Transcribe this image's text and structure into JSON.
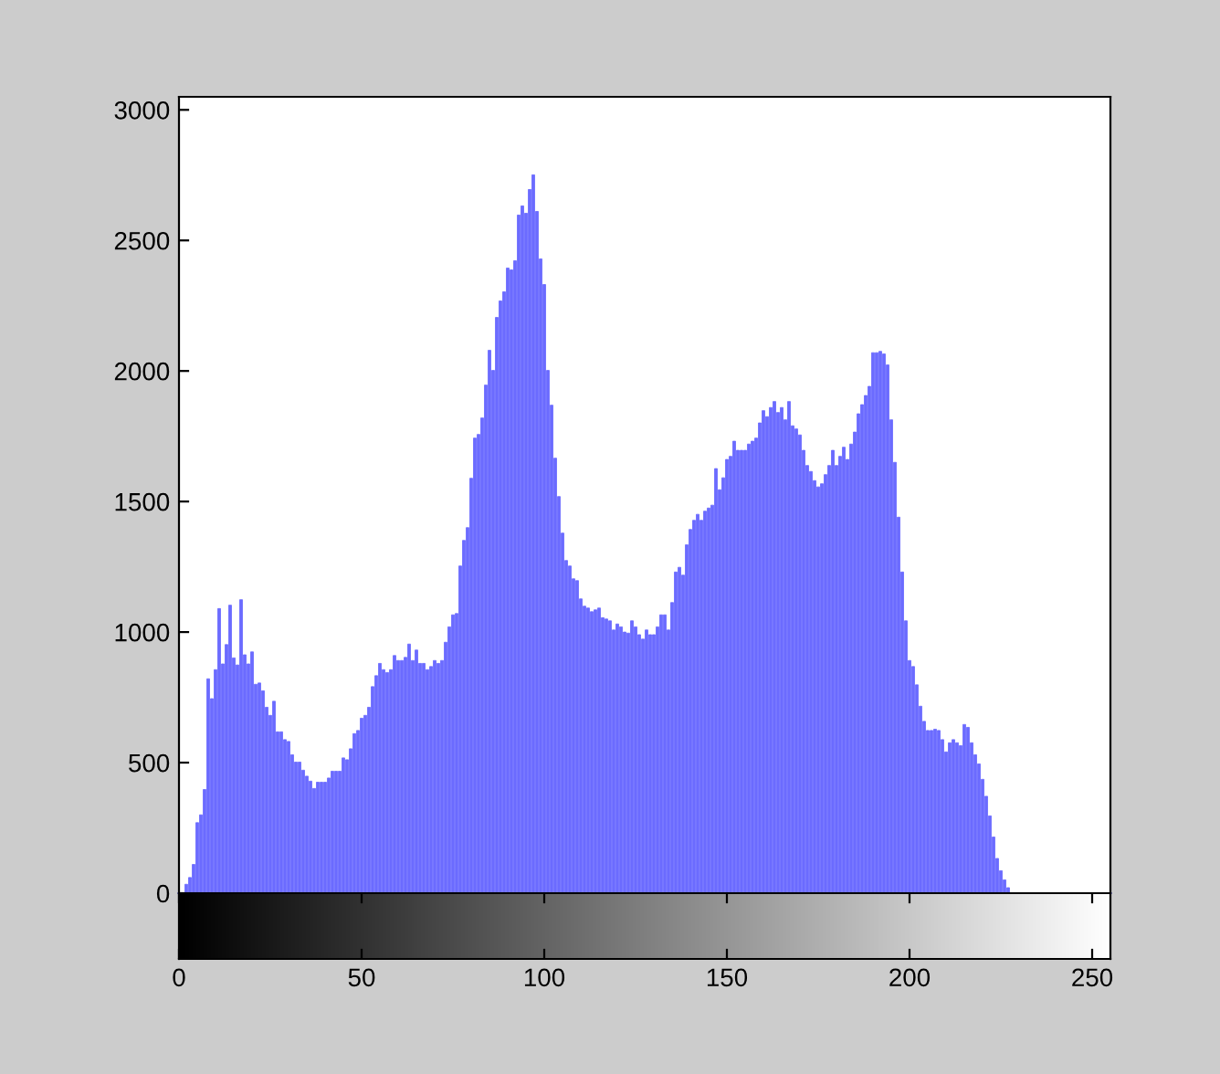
{
  "chart_data": {
    "type": "bar",
    "color": "#6b6bff",
    "x": [
      0,
      1,
      2,
      3,
      4,
      5,
      6,
      7,
      8,
      9,
      10,
      11,
      12,
      13,
      14,
      15,
      16,
      17,
      18,
      19,
      20,
      21,
      22,
      23,
      24,
      25,
      26,
      27,
      28,
      29,
      30,
      31,
      32,
      33,
      34,
      35,
      36,
      37,
      38,
      39,
      40,
      41,
      42,
      43,
      44,
      45,
      46,
      47,
      48,
      49,
      50,
      51,
      52,
      53,
      54,
      55,
      56,
      57,
      58,
      59,
      60,
      61,
      62,
      63,
      64,
      65,
      66,
      67,
      68,
      69,
      70,
      71,
      72,
      73,
      74,
      75,
      76,
      77,
      78,
      79,
      80,
      81,
      82,
      83,
      84,
      85,
      86,
      87,
      88,
      89,
      90,
      91,
      92,
      93,
      94,
      95,
      96,
      97,
      98,
      99,
      100,
      101,
      102,
      103,
      104,
      105,
      106,
      107,
      108,
      109,
      110,
      111,
      112,
      113,
      114,
      115,
      116,
      117,
      118,
      119,
      120,
      121,
      122,
      123,
      124,
      125,
      126,
      127,
      128,
      129,
      130,
      131,
      132,
      133,
      134,
      135,
      136,
      137,
      138,
      139,
      140,
      141,
      142,
      143,
      144,
      145,
      146,
      147,
      148,
      149,
      150,
      151,
      152,
      153,
      154,
      155,
      156,
      157,
      158,
      159,
      160,
      161,
      162,
      163,
      164,
      165,
      166,
      167,
      168,
      169,
      170,
      171,
      172,
      173,
      174,
      175,
      176,
      177,
      178,
      179,
      180,
      181,
      182,
      183,
      184,
      185,
      186,
      187,
      188,
      189,
      190,
      191,
      192,
      193,
      194,
      195,
      196,
      197,
      198,
      199,
      200,
      201,
      202,
      203,
      204,
      205,
      206,
      207,
      208,
      209,
      210,
      211,
      212,
      213,
      214,
      215,
      216,
      217,
      218,
      219,
      220,
      221,
      222,
      223,
      224,
      225,
      226,
      227,
      228,
      229,
      230,
      231,
      232,
      233,
      234,
      235,
      236,
      237,
      238,
      239,
      240,
      241,
      242,
      243,
      244,
      245,
      246,
      247,
      248,
      249,
      250,
      251,
      252,
      253,
      254,
      255
    ],
    "values": [
      0,
      0,
      34,
      60,
      110,
      270,
      300,
      397,
      821,
      745,
      856,
      1090,
      878,
      952,
      1103,
      901,
      874,
      1124,
      913,
      878,
      924,
      800,
      805,
      775,
      712,
      681,
      735,
      618,
      618,
      588,
      581,
      530,
      502,
      502,
      471,
      448,
      429,
      401,
      425,
      425,
      425,
      441,
      467,
      467,
      467,
      518,
      511,
      553,
      611,
      623,
      670,
      681,
      712,
      791,
      833,
      880,
      856,
      845,
      856,
      910,
      891,
      891,
      903,
      954,
      891,
      931,
      880,
      880,
      856,
      868,
      891,
      880,
      891,
      961,
      1020,
      1066,
      1071,
      1253,
      1351,
      1400,
      1589,
      1743,
      1757,
      1820,
      1946,
      2079,
      2002,
      2205,
      2268,
      2303,
      2394,
      2387,
      2422,
      2597,
      2632,
      2604,
      2695,
      2751,
      2611,
      2429,
      2331,
      2002,
      1869,
      1666,
      1519,
      1379,
      1274,
      1253,
      1204,
      1197,
      1127,
      1099,
      1092,
      1078,
      1085,
      1092,
      1055,
      1050,
      1043,
      1008,
      1031,
      1020,
      1000,
      996,
      1043,
      1020,
      990,
      973,
      1008,
      990,
      990,
      1020,
      1066,
      1066,
      1008,
      1113,
      1230,
      1248,
      1218,
      1334,
      1393,
      1428,
      1451,
      1428,
      1463,
      1475,
      1486,
      1626,
      1545,
      1591,
      1661,
      1673,
      1731,
      1696,
      1696,
      1696,
      1720,
      1731,
      1743,
      1801,
      1848,
      1825,
      1860,
      1883,
      1841,
      1860,
      1813,
      1883,
      1790,
      1778,
      1755,
      1696,
      1638,
      1615,
      1580,
      1556,
      1568,
      1603,
      1638,
      1696,
      1638,
      1673,
      1708,
      1661,
      1720,
      1766,
      1836,
      1871,
      1906,
      1941,
      2070,
      2070,
      2075,
      2065,
      2023,
      1813,
      1650,
      1440,
      1230,
      1043,
      891,
      868,
      798,
      716,
      658,
      623,
      623,
      628,
      623,
      588,
      541,
      576,
      588,
      576,
      565,
      646,
      635,
      576,
      530,
      495,
      436,
      371,
      296,
      215,
      133,
      86,
      51,
      21,
      0,
      0,
      0,
      0,
      0,
      0,
      0,
      0,
      0,
      0,
      0,
      0,
      0,
      0,
      0,
      0,
      0,
      0,
      0,
      0,
      0,
      0,
      0,
      0,
      0,
      0,
      0,
      0
    ],
    "xlim": [
      0,
      255
    ],
    "xticks": [
      0,
      50,
      100,
      150,
      200,
      250
    ],
    "ylim": [
      0,
      3050
    ],
    "yticks": [
      0,
      500,
      1000,
      1500,
      2000,
      2500,
      3000
    ],
    "grid": false
  }
}
